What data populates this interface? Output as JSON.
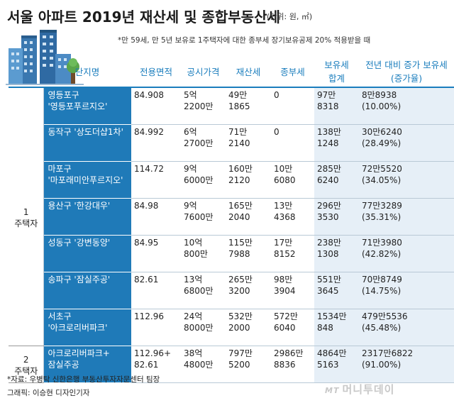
{
  "title": "서울 아파트 2019년 재산세 및 종합부동산세",
  "unit": "(단위: 원, ㎡)",
  "footnote": "*만 59세, 만 5년 보유로 1주택자에 대한 종부세 장기보유공제 20% 적용받을 때",
  "headers": {
    "name": "단지명",
    "area": "전용면적",
    "price": "공시가격",
    "property_tax": "재산세",
    "comp_tax": "종부세",
    "total_l1": "보유세",
    "total_l2": "합계",
    "inc_l1": "전년 대비 증가 보유세",
    "inc_l2": "(증가율)"
  },
  "groups": {
    "one_l1": "1",
    "one_l2": "주택자",
    "two_l1": "2",
    "two_l2": "주택자"
  },
  "rows": [
    {
      "name_l1": "영등포구",
      "name_l2": "'영등포푸르지오'",
      "area_l1": "84.908",
      "area_l2": "",
      "price_l1": "5억",
      "price_l2": "2200만",
      "prop_l1": "49만",
      "prop_l2": "1865",
      "comp_l1": "0",
      "comp_l2": "",
      "total_l1": "97만",
      "total_l2": "8318",
      "inc_l1": "8만8938",
      "inc_l2": "(10.00%)"
    },
    {
      "name_l1": "동작구 '상도더샵1차'",
      "name_l2": "",
      "area_l1": "84.992",
      "area_l2": "",
      "price_l1": "6억",
      "price_l2": "2700만",
      "prop_l1": "71만",
      "prop_l2": "2140",
      "comp_l1": "0",
      "comp_l2": "",
      "total_l1": "138만",
      "total_l2": "1248",
      "inc_l1": "30만6240",
      "inc_l2": "(28.49%)"
    },
    {
      "name_l1": "마포구",
      "name_l2": "'마포래미안푸르지오'",
      "area_l1": "114.72",
      "area_l2": "",
      "price_l1": "9억",
      "price_l2": "6000만",
      "prop_l1": "160만",
      "prop_l2": "2120",
      "comp_l1": "10만",
      "comp_l2": "6080",
      "total_l1": "285만",
      "total_l2": "6240",
      "inc_l1": "72만5520",
      "inc_l2": "(34.05%)"
    },
    {
      "name_l1": "용산구 '한강대우'",
      "name_l2": "",
      "area_l1": "84.98",
      "area_l2": "",
      "price_l1": "9억",
      "price_l2": "7600만",
      "prop_l1": "165만",
      "prop_l2": "2040",
      "comp_l1": "13만",
      "comp_l2": "4368",
      "total_l1": "296만",
      "total_l2": "3530",
      "inc_l1": "77만3289",
      "inc_l2": "(35.31%)"
    },
    {
      "name_l1": "성동구 '강변동양'",
      "name_l2": "",
      "area_l1": "84.95",
      "area_l2": "",
      "price_l1": "10억",
      "price_l2": "800만",
      "prop_l1": "115만",
      "prop_l2": "7988",
      "comp_l1": "17만",
      "comp_l2": "8152",
      "total_l1": "238만",
      "total_l2": "1308",
      "inc_l1": "71만3980",
      "inc_l2": "(42.82%)"
    },
    {
      "name_l1": "송파구 '잠실주공'",
      "name_l2": "",
      "area_l1": "82.61",
      "area_l2": "",
      "price_l1": "13억",
      "price_l2": "6800만",
      "prop_l1": "265만",
      "prop_l2": "3200",
      "comp_l1": "98만",
      "comp_l2": "3904",
      "total_l1": "551만",
      "total_l2": "3645",
      "inc_l1": "70만8749",
      "inc_l2": "(14.75%)"
    },
    {
      "name_l1": "서초구",
      "name_l2": "'아크로리버파크'",
      "area_l1": "112.96",
      "area_l2": "",
      "price_l1": "24억",
      "price_l2": "8000만",
      "prop_l1": "532만",
      "prop_l2": "2000",
      "comp_l1": "572만",
      "comp_l2": "6040",
      "total_l1": "1534만",
      "total_l2": "848",
      "inc_l1": "479만5536",
      "inc_l2": "(45.48%)"
    },
    {
      "name_l1": "아크로리버파크+",
      "name_l2": "잠실주공",
      "area_l1": "112.96+",
      "area_l2": "82.61",
      "price_l1": "38억",
      "price_l2": "4800만",
      "prop_l1": "797만",
      "prop_l2": "5200",
      "comp_l1": "2986만",
      "comp_l2": "8836",
      "total_l1": "4864만",
      "total_l2": "5163",
      "inc_l1": "2317만6822",
      "inc_l2": "(91.00%)"
    }
  ],
  "source": "*자료: 우병탁 신한은행 부동산투자자문센터 팀장",
  "credit": "그래픽: 이승현 디자인기자",
  "watermark_mt": "MT",
  "watermark": "머니투데이",
  "colors": {
    "accent": "#1a7dbd",
    "name_cell": "#1f7ab8",
    "highlight": "#e6eff7"
  }
}
